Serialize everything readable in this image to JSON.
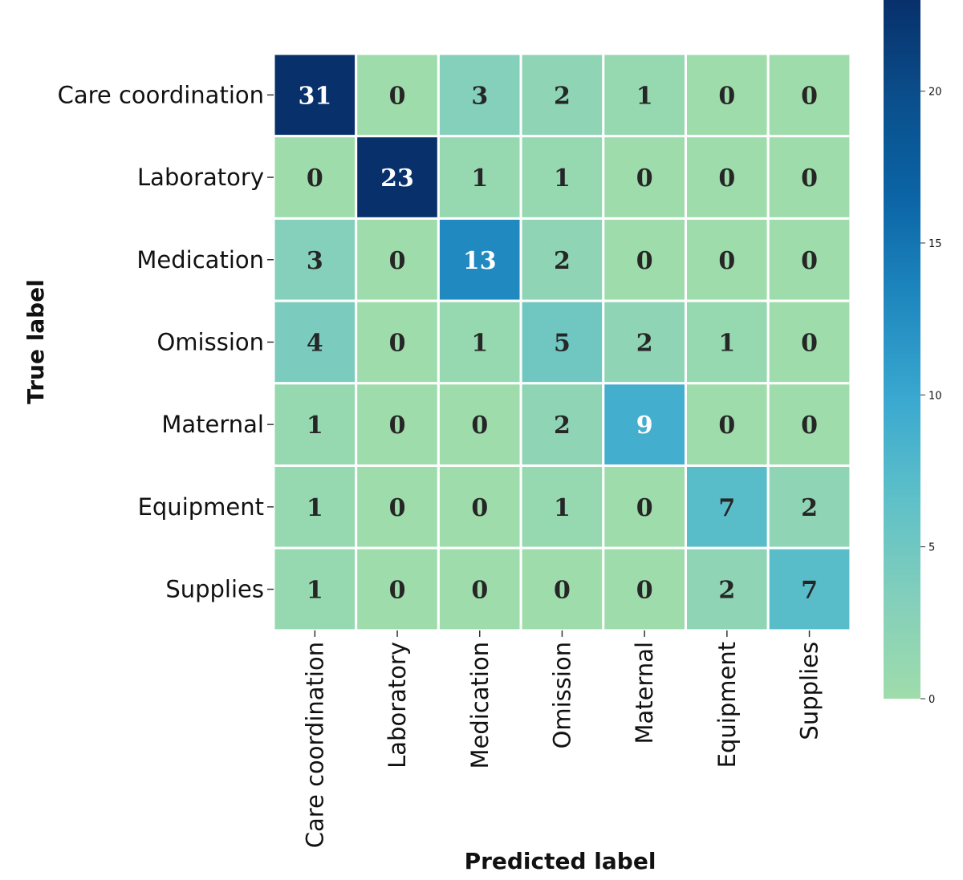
{
  "chart_data": {
    "type": "heatmap",
    "title": "",
    "xlabel": "Predicted label",
    "ylabel": "True label",
    "x_categories": [
      "Care coordination",
      "Laboratory",
      "Medication",
      "Omission",
      "Maternal",
      "Equipment",
      "Supplies"
    ],
    "y_categories": [
      "Care coordination",
      "Laboratory",
      "Medication",
      "Omission",
      "Maternal",
      "Equipment",
      "Supplies"
    ],
    "values": [
      [
        31,
        0,
        3,
        2,
        1,
        0,
        0
      ],
      [
        0,
        23,
        1,
        1,
        0,
        0,
        0
      ],
      [
        3,
        0,
        13,
        2,
        0,
        0,
        0
      ],
      [
        4,
        0,
        1,
        5,
        2,
        1,
        0
      ],
      [
        1,
        0,
        0,
        2,
        9,
        0,
        0
      ],
      [
        1,
        0,
        0,
        1,
        0,
        7,
        2
      ],
      [
        1,
        0,
        0,
        0,
        0,
        2,
        7
      ]
    ],
    "colorbar": {
      "range": [
        0,
        23
      ],
      "ticks": [
        0,
        5,
        10,
        15,
        20
      ],
      "colormap": "GnBu",
      "colors": [
        "#9fdcab",
        "#83cfbb",
        "#5ec0c8",
        "#3aa8d0",
        "#1f88bf",
        "#0b65a6",
        "#0a4f8c",
        "#08306b"
      ]
    },
    "grid": "white cell borders",
    "legend": "colorbar right"
  }
}
